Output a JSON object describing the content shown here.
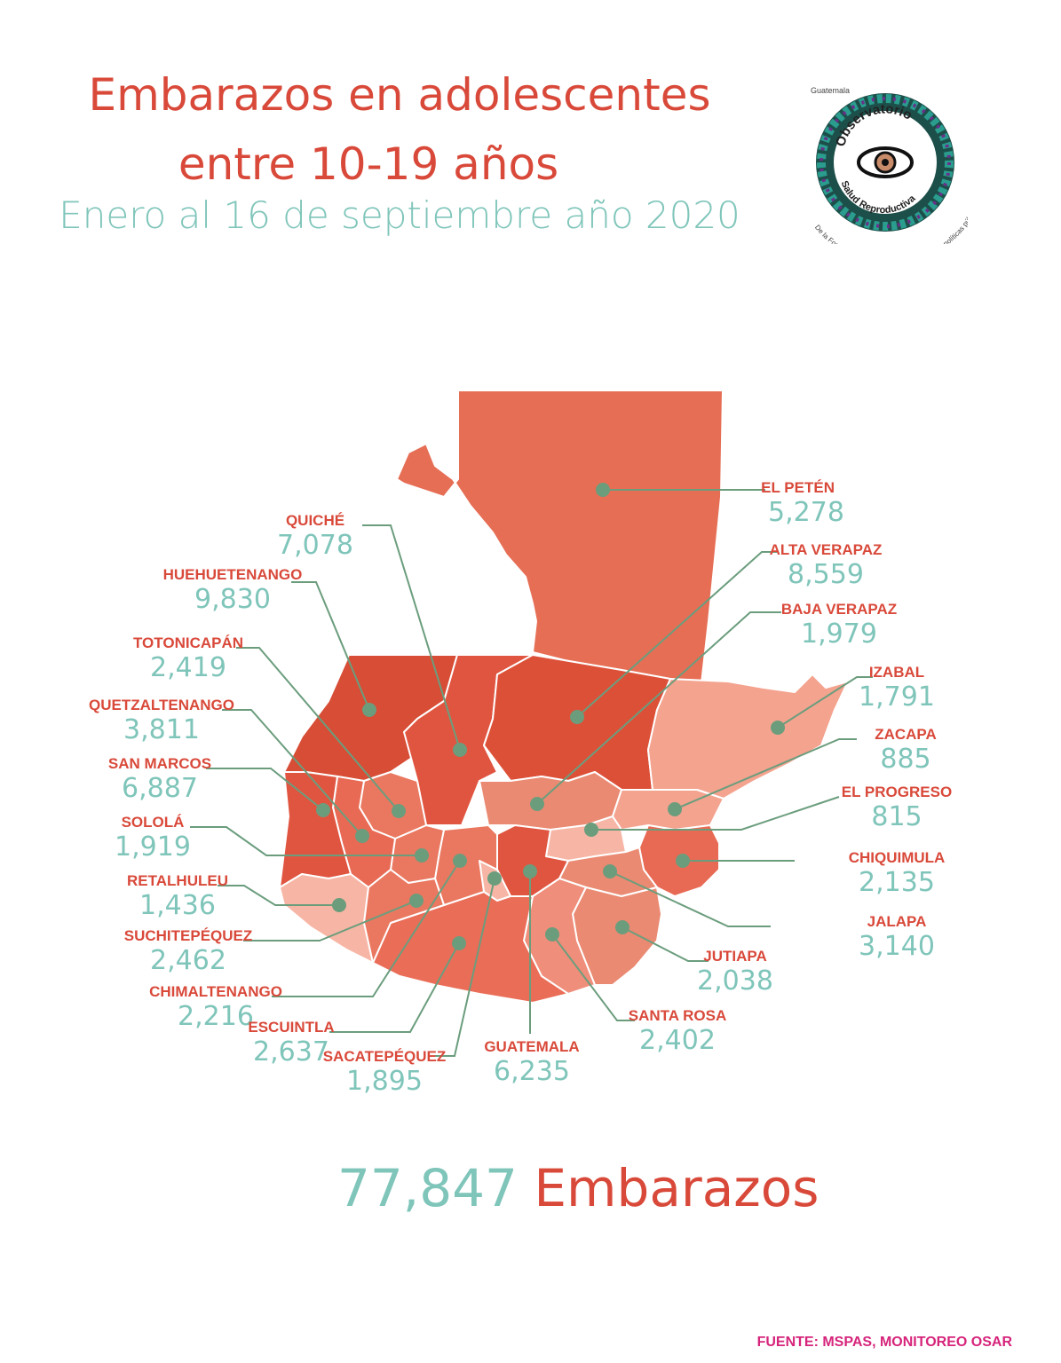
{
  "header": {
    "title_line1": "Embarazos en adolescentes",
    "title_line2": "entre 10-19 años",
    "subtitle": "Enero al 16 de septiembre año 2020"
  },
  "logo": {
    "top_text": "Guatemala",
    "ring_text": "Observatorio",
    "inner_text": "Salud Reproductiva",
    "bottom_text": "De la Formulación a la implementación de las políticas públicas"
  },
  "colors": {
    "title": "#d9493a",
    "value": "#7fc5ba",
    "leader": "#6b9d7d",
    "source": "#d6247b"
  },
  "departments": [
    {
      "label": "EL PETÉN",
      "value": "5,278"
    },
    {
      "label": "QUICHÉ",
      "value": "7,078"
    },
    {
      "label": "ALTA VERAPAZ",
      "value": "8,559"
    },
    {
      "label": "HUEHUETENANGO",
      "value": "9,830"
    },
    {
      "label": "BAJA VERAPAZ",
      "value": "1,979"
    },
    {
      "label": "TOTONICAPÁN",
      "value": "2,419"
    },
    {
      "label": "IZABAL",
      "value": "1,791"
    },
    {
      "label": "QUETZALTENANGO",
      "value": "3,811"
    },
    {
      "label": "ZACAPA",
      "value": "885"
    },
    {
      "label": "SAN MARCOS",
      "value": "6,887"
    },
    {
      "label": "EL PROGRESO",
      "value": "815"
    },
    {
      "label": "SOLOLÁ",
      "value": "1,919"
    },
    {
      "label": "CHIQUIMULA",
      "value": "2,135"
    },
    {
      "label": "RETALHULEU",
      "value": "1,436"
    },
    {
      "label": "JALAPA",
      "value": "3,140"
    },
    {
      "label": "SUCHITEPÉQUEZ",
      "value": "2,462"
    },
    {
      "label": "JUTIAPA",
      "value": "2,038"
    },
    {
      "label": "CHIMALTENANGO",
      "value": "2,216"
    },
    {
      "label": "SANTA ROSA",
      "value": "2,402"
    },
    {
      "label": "ESCUINTLA",
      "value": "2,637"
    },
    {
      "label": "SACATEPÉQUEZ",
      "value": "1,895"
    },
    {
      "label": "GUATEMALA",
      "value": "6,235"
    }
  ],
  "total": {
    "number": "77,847",
    "word": "Embarazos"
  },
  "source": "FUENTE: MSPAS, MONITOREO OSAR"
}
